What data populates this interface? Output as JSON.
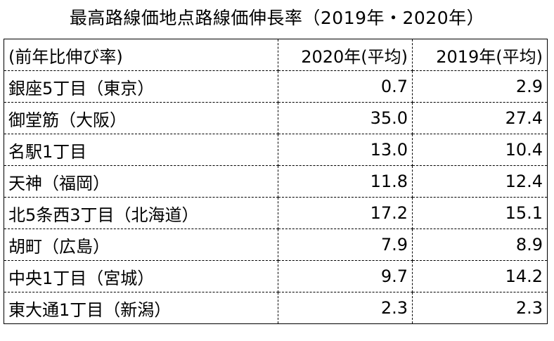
{
  "title": "最高路線価地点路線価伸長率（2019年・2020年）",
  "table": {
    "header": [
      "(前年比伸び率)",
      "2020年(平均)",
      "2019年(平均)"
    ],
    "rows": [
      {
        "location": "銀座5丁目（東京）",
        "y2020": "0.7",
        "y2019": "2.9"
      },
      {
        "location": "御堂筋（大阪）",
        "y2020": "35.0",
        "y2019": "27.4"
      },
      {
        "location": "名駅1丁目",
        "y2020": "13.0",
        "y2019": "10.4"
      },
      {
        "location": "天神（福岡）",
        "y2020": "11.8",
        "y2019": "12.4"
      },
      {
        "location": "北5条西3丁目（北海道）",
        "y2020": "17.2",
        "y2019": "15.1"
      },
      {
        "location": "胡町（広島）",
        "y2020": "7.9",
        "y2019": "8.9"
      },
      {
        "location": "中央1丁目（宮城）",
        "y2020": "9.7",
        "y2019": "14.2"
      },
      {
        "location": "東大通1丁目（新潟）",
        "y2020": "2.3",
        "y2019": "2.3"
      }
    ]
  }
}
